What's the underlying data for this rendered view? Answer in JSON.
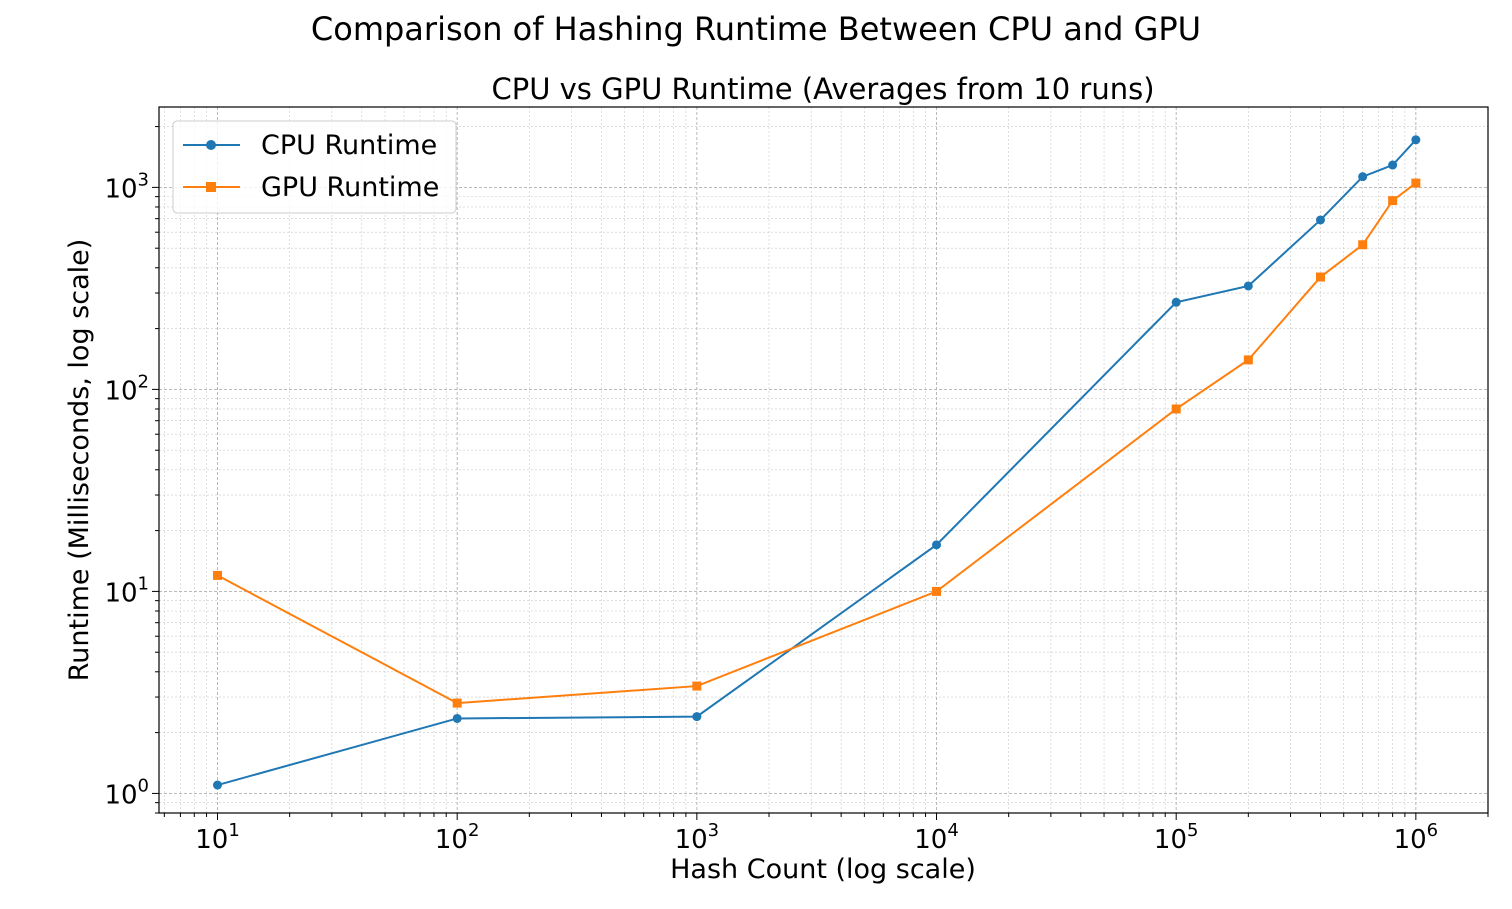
{
  "figure": {
    "suptitle": "Comparison of Hashing Runtime Between CPU and GPU"
  },
  "chart_data": {
    "type": "line",
    "title": "CPU vs GPU Runtime (Averages from 10 runs)",
    "xlabel": "Hash Count (log scale)",
    "ylabel": "Runtime (Milliseconds, log scale)",
    "xscale": "log",
    "yscale": "log",
    "xlim": [
      5.7,
      2000000
    ],
    "ylim": [
      0.8,
      2500
    ],
    "grid": "both major and minor, dashed",
    "legend_position": "top-left",
    "x_ticks": [
      {
        "base": "10",
        "exp": "1",
        "value": 10
      },
      {
        "base": "10",
        "exp": "2",
        "value": 100
      },
      {
        "base": "10",
        "exp": "3",
        "value": 1000
      },
      {
        "base": "10",
        "exp": "4",
        "value": 10000
      },
      {
        "base": "10",
        "exp": "5",
        "value": 100000
      },
      {
        "base": "10",
        "exp": "6",
        "value": 1000000
      }
    ],
    "y_ticks": [
      {
        "base": "10",
        "exp": "0",
        "value": 1
      },
      {
        "base": "10",
        "exp": "1",
        "value": 10
      },
      {
        "base": "10",
        "exp": "2",
        "value": 100
      },
      {
        "base": "10",
        "exp": "3",
        "value": 1000
      }
    ],
    "x": [
      10,
      100,
      1000,
      10000,
      100000,
      200000,
      400000,
      600000,
      800000,
      1000000
    ],
    "series": [
      {
        "name": "CPU Runtime",
        "color": "#1f77b4",
        "marker": "circle",
        "values": [
          1.1,
          2.35,
          2.4,
          17,
          270,
          325,
          690,
          1130,
          1290,
          1720
        ]
      },
      {
        "name": "GPU Runtime",
        "color": "#ff7f0e",
        "marker": "square",
        "values": [
          12,
          2.8,
          3.4,
          10,
          80,
          140,
          360,
          520,
          860,
          1050
        ]
      }
    ]
  }
}
